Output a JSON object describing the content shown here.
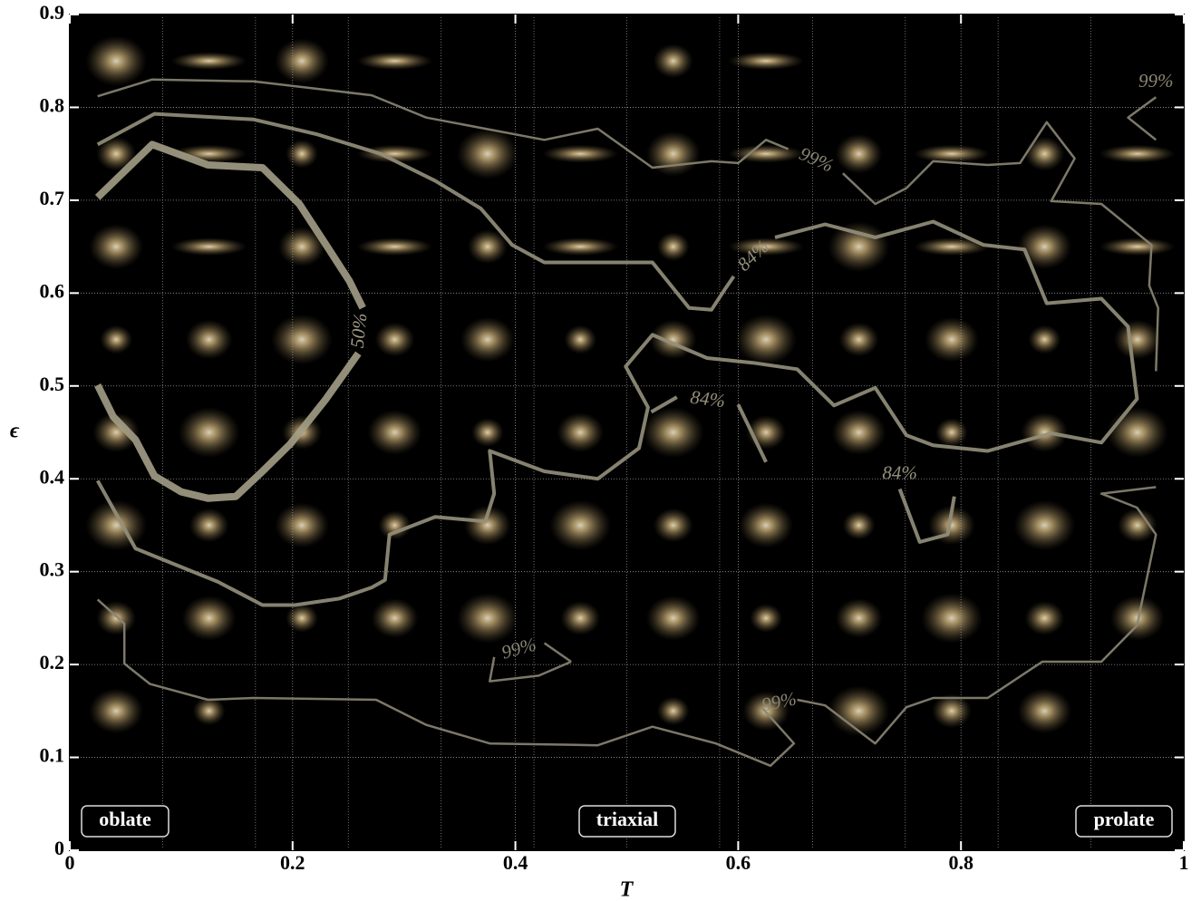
{
  "chart_data": {
    "type": "contour",
    "xlabel": "T",
    "ylabel": "ϵ",
    "xlim": [
      0,
      1
    ],
    "ylim": [
      0,
      0.9
    ],
    "xticks": [
      0,
      0.2,
      0.4,
      0.6,
      0.8,
      1
    ],
    "yticks": [
      0,
      0.1,
      0.2,
      0.3,
      0.4,
      0.5,
      0.6,
      0.7,
      0.8,
      0.9
    ],
    "grid": true,
    "annotations": [
      "oblate",
      "triaxial",
      "prolate"
    ],
    "contours": [
      {
        "name": "50%",
        "color": "#a39d86",
        "width": 8,
        "x": [
          0.025,
          0.074,
          0.124,
          0.173,
          0.206,
          0.23,
          0.251,
          0.263,
          null,
          0.259,
          0.23,
          0.198,
          0.173,
          0.149,
          0.124,
          0.1,
          0.076,
          0.059,
          0.039,
          0.025
        ],
        "values": [
          0.703,
          0.76,
          0.738,
          0.735,
          0.696,
          0.652,
          0.613,
          0.584,
          null,
          0.535,
          0.486,
          0.4375,
          0.408,
          0.381,
          0.379,
          0.386,
          0.403,
          0.442,
          0.467,
          0.501
        ]
      },
      {
        "name": "84%",
        "color": "#95907c",
        "width": 4,
        "x": [
          0.025,
          0.076,
          0.165,
          0.222,
          0.279,
          0.328,
          0.369,
          0.397,
          0.426,
          0.523,
          0.556,
          0.576,
          0.588,
          0.596,
          null,
          0.633,
          0.678,
          0.723,
          0.775,
          0.82,
          0.857,
          0.877,
          0.926,
          0.95,
          0.958,
          0.926,
          0.881,
          0.824,
          0.775,
          0.751,
          0.723,
          0.686,
          0.653,
          0.613,
          0.572,
          0.523,
          0.499,
          0.519,
          0.511,
          0.474,
          0.426,
          0.377,
          0.381,
          0.373,
          0.328,
          0.287,
          0.283,
          0.271,
          0.242,
          0.202,
          0.173,
          0.133,
          0.059,
          0.025
        ],
        "values": [
          0.76,
          0.793,
          0.787,
          0.771,
          0.75,
          0.721,
          0.691,
          0.652,
          0.633,
          0.633,
          0.584,
          0.582,
          0.604,
          0.618,
          null,
          0.66,
          0.674,
          0.66,
          0.677,
          0.652,
          0.647,
          0.589,
          0.594,
          0.564,
          0.486,
          0.439,
          0.449,
          0.43,
          0.436,
          0.447,
          0.498,
          0.479,
          0.518,
          0.525,
          0.53,
          0.555,
          0.521,
          0.477,
          0.433,
          0.4,
          0.408,
          0.43,
          0.384,
          0.354,
          0.359,
          0.34,
          0.291,
          0.283,
          0.271,
          0.264,
          0.264,
          0.289,
          0.325,
          0.398
        ]
      },
      {
        "name": "84%",
        "color": "#95907c",
        "width": 4,
        "x": [
          0.522,
          0.545,
          null,
          0.6,
          0.625
        ],
        "values": [
          0.472,
          0.488,
          null,
          0.48,
          0.418
        ]
      },
      {
        "name": "84%",
        "color": "#95907c",
        "width": 4,
        "x": [
          0.745,
          0.763,
          0.788,
          0.794
        ],
        "values": [
          0.389,
          0.332,
          0.34,
          0.381
        ]
      },
      {
        "name": "99%",
        "color": "#8a8674",
        "width": 2.5,
        "x": [
          0.025,
          0.074,
          0.165,
          0.271,
          0.32,
          0.426,
          0.474,
          0.523,
          0.576,
          0.6,
          0.625,
          0.645,
          null,
          0.694,
          0.723,
          0.751,
          0.775,
          0.824,
          0.853,
          0.877,
          0.902,
          0.881,
          0.926,
          0.971,
          0.969,
          0.977,
          0.975
        ],
        "values": [
          0.812,
          0.83,
          0.828,
          0.813,
          0.789,
          0.765,
          0.777,
          0.735,
          0.742,
          0.74,
          0.765,
          0.755,
          null,
          0.729,
          0.696,
          0.713,
          0.742,
          0.738,
          0.74,
          0.784,
          0.745,
          0.699,
          0.696,
          0.652,
          0.608,
          0.584,
          0.516
        ]
      },
      {
        "name": "99%",
        "color": "#8a8674",
        "width": 2.5,
        "x": [
          0.975,
          0.95,
          0.975
        ],
        "values": [
          0.811,
          0.789,
          0.765
        ]
      },
      {
        "name": "99%",
        "color": "#8a8674",
        "width": 2.5,
        "x": [
          0.025,
          0.049,
          0.049,
          0.072,
          0.124,
          0.165,
          0.275,
          0.32,
          0.377,
          0.474,
          0.523,
          0.58,
          0.629,
          0.65,
          0.621,
          null,
          0.653,
          0.678,
          0.723,
          0.751,
          0.775,
          0.824,
          0.873,
          0.926,
          0.958,
          0.975,
          0.958,
          0.926,
          0.975
        ],
        "values": [
          0.27,
          0.244,
          0.201,
          0.179,
          0.162,
          0.164,
          0.162,
          0.135,
          0.115,
          0.113,
          0.133,
          0.115,
          0.091,
          0.115,
          0.154,
          null,
          0.162,
          0.156,
          0.115,
          0.154,
          0.164,
          0.164,
          0.203,
          0.203,
          0.242,
          0.34,
          0.369,
          0.384,
          0.391
        ]
      },
      {
        "name": "99%",
        "color": "#8a8674",
        "width": 2.5,
        "x": [
          0.45,
          0.426,
          null,
          0.381,
          0.377,
          0.421,
          0.45
        ],
        "values": [
          0.203,
          0.223,
          null,
          0.208,
          0.182,
          0.188,
          0.203
        ]
      }
    ]
  }
}
